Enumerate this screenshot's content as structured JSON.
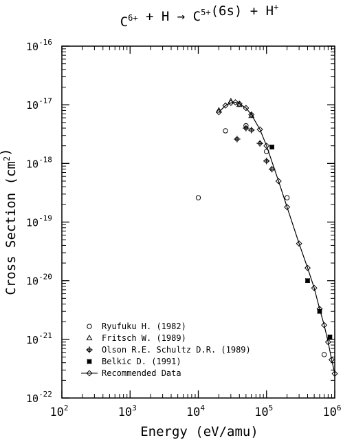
{
  "chart_data": {
    "type": "scatter",
    "title": {
      "parts": [
        {
          "t": "C",
          "sup": false
        },
        {
          "t": "6+",
          "sup": true
        },
        {
          "t": " + H → C",
          "sup": false
        },
        {
          "t": "5+",
          "sup": true
        },
        {
          "t": "(6s) + H",
          "sup": false
        },
        {
          "t": "+",
          "sup": true
        }
      ]
    },
    "xlabel": "Energy (eV/amu)",
    "ylabel": {
      "parts": [
        {
          "t": "Cross Section (cm",
          "sup": false
        },
        {
          "t": "2",
          "sup": true
        },
        {
          "t": ")",
          "sup": false
        }
      ]
    },
    "xscale": "log",
    "yscale": "log",
    "xlim": [
      100,
      1000000
    ],
    "ylim": [
      1e-22,
      1e-16
    ],
    "x_ticks": [
      {
        "value": 100,
        "base": "10",
        "exp": "2"
      },
      {
        "value": 1000,
        "base": "10",
        "exp": "3"
      },
      {
        "value": 10000,
        "base": "10",
        "exp": "4"
      },
      {
        "value": 100000,
        "base": "10",
        "exp": "5"
      },
      {
        "value": 1000000,
        "base": "10",
        "exp": "6"
      }
    ],
    "y_ticks": [
      {
        "value": 1e-22,
        "base": "10",
        "exp": "-22"
      },
      {
        "value": 1e-21,
        "base": "10",
        "exp": "-21"
      },
      {
        "value": 1e-20,
        "base": "10",
        "exp": "-20"
      },
      {
        "value": 1e-19,
        "base": "10",
        "exp": "-19"
      },
      {
        "value": 1e-18,
        "base": "10",
        "exp": "-18"
      },
      {
        "value": 1e-17,
        "base": "10",
        "exp": "-17"
      },
      {
        "value": 1e-16,
        "base": "10",
        "exp": "-16"
      }
    ],
    "grid": false,
    "legend_position": "bottom-left",
    "series": [
      {
        "name": "Ryufuku H. (1982)",
        "marker": "circle",
        "points": [
          [
            10000,
            2.6e-19
          ],
          [
            25000,
            3.6e-18
          ],
          [
            50000,
            4.4e-18
          ],
          [
            100000,
            1.6e-18
          ],
          [
            200000,
            2.6e-19
          ],
          [
            700000,
            5.5e-22
          ]
        ]
      },
      {
        "name": "Fritsch W. (1989)",
        "marker": "triangle",
        "points": [
          [
            20000,
            8e-18
          ],
          [
            30000,
            1.15e-17
          ],
          [
            40000,
            1e-17
          ],
          [
            60000,
            6.5e-18
          ]
        ]
      },
      {
        "name": "Olson R.E. Schultz D.R. (1989)",
        "marker": "circle-plus",
        "points": [
          [
            37000,
            2.6e-18
          ],
          [
            50000,
            4e-18
          ],
          [
            60000,
            3.7e-18
          ],
          [
            80000,
            2.2e-18
          ],
          [
            100000,
            1.1e-18
          ],
          [
            120000,
            8e-19
          ]
        ]
      },
      {
        "name": "Belkic D. (1991)",
        "marker": "x-square",
        "points": [
          [
            120000,
            1.9e-18
          ],
          [
            400000,
            1e-20
          ],
          [
            600000,
            3e-21
          ],
          [
            850000,
            1.1e-21
          ]
        ]
      },
      {
        "name": "Recommended Data",
        "marker": "diamond",
        "line": true,
        "points": [
          [
            20000,
            7.5e-18
          ],
          [
            25000,
            9.7e-18
          ],
          [
            30000,
            1.08e-17
          ],
          [
            35000,
            1.1e-17
          ],
          [
            40000,
            1.04e-17
          ],
          [
            50000,
            8.8e-18
          ],
          [
            60000,
            6.8e-18
          ],
          [
            80000,
            3.8e-18
          ],
          [
            100000,
            2e-18
          ],
          [
            150000,
            5e-19
          ],
          [
            200000,
            1.8e-19
          ],
          [
            300000,
            4.3e-20
          ],
          [
            400000,
            1.65e-20
          ],
          [
            500000,
            7.5e-21
          ],
          [
            600000,
            3.3e-21
          ],
          [
            700000,
            1.75e-21
          ],
          [
            800000,
            9e-22
          ],
          [
            900000,
            4.5e-22
          ],
          [
            1000000,
            2.6e-22
          ]
        ]
      }
    ]
  }
}
